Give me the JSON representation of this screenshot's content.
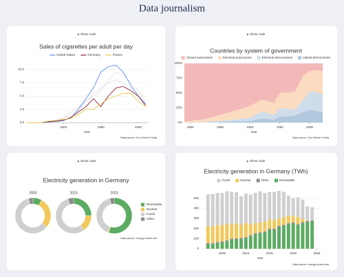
{
  "title": "Data journalism",
  "cards": [
    {
      "toggle": "Show code"
    },
    {
      "toggle": "Show code"
    },
    {
      "toggle": "Show code"
    },
    {
      "toggle": "Show code"
    }
  ],
  "chart_data": [
    {
      "type": "line",
      "title": "Sales of cigarettes per adult per day",
      "x_label": "Year",
      "source": "Data source: Our World in Data",
      "x": [
        1850,
        1860,
        1870,
        1880,
        1890,
        1900,
        1910,
        1920,
        1930,
        1940,
        1950,
        1960,
        1970,
        1980,
        1990,
        2000,
        2010
      ],
      "xlim": [
        1850,
        2013
      ],
      "xticks": [
        1900,
        1950,
        2000
      ],
      "ylim": [
        0,
        11
      ],
      "yticks": [
        {
          "value": 0,
          "label": "0.0"
        },
        {
          "value": 2.5,
          "label": "2.5"
        },
        {
          "value": 5,
          "label": "5.0"
        },
        {
          "value": 7.5,
          "label": "7.5"
        },
        {
          "value": 10,
          "label": "10.0"
        }
      ],
      "grid": true,
      "series": [
        {
          "name": "United States",
          "color": "#5b8def",
          "values": [
            0,
            0,
            0,
            0.1,
            0.2,
            0.4,
            0.9,
            2.5,
            4.5,
            6.5,
            9.5,
            10.5,
            10.8,
            9.5,
            7,
            5,
            3.5
          ]
        },
        {
          "name": "Germany",
          "color": "#8e1b2e",
          "values": [
            0,
            0,
            0,
            0.2,
            0.3,
            0.5,
            1,
            2,
            3,
            4.5,
            3,
            5,
            6.5,
            6.8,
            6,
            5,
            3.2
          ]
        },
        {
          "name": "France",
          "color": "#e9c64a",
          "values": [
            0,
            0,
            0,
            0.3,
            0.4,
            0.6,
            0.8,
            1.5,
            2.5,
            2.5,
            3.5,
            4.5,
            5,
            5.5,
            5.5,
            4,
            3
          ]
        },
        {
          "color": "#d4d4d4",
          "values": [
            0,
            0,
            0,
            0.2,
            0.5,
            1,
            2,
            3,
            4,
            5,
            6,
            8,
            9.5,
            9,
            7.5,
            6,
            4.5
          ]
        },
        {
          "color": "#d4d4d4",
          "values": [
            0,
            0,
            0,
            0.1,
            0.3,
            0.8,
            1.5,
            2.5,
            4,
            5.5,
            6.5,
            7.5,
            8,
            7.5,
            6.5,
            5.5,
            4
          ]
        }
      ]
    },
    {
      "type": "area",
      "title": "Countries by system of government",
      "x_label": "Year",
      "source": "Data source: Our World in Data",
      "x": [
        1790,
        1800,
        1825,
        1850,
        1875,
        1900,
        1920,
        1940,
        1950,
        1975,
        1990,
        2000,
        2010,
        2022
      ],
      "xlim": [
        1790,
        2023
      ],
      "xticks": [
        1800,
        1850,
        1900,
        1950,
        2000
      ],
      "ylim": [
        0,
        100
      ],
      "yticks": [
        {
          "value": 0,
          "label": "0%"
        },
        {
          "value": 25,
          "label": "25%"
        },
        {
          "value": 50,
          "label": "50%"
        },
        {
          "value": 75,
          "label": "75%"
        },
        {
          "value": 100,
          "label": "100%"
        }
      ],
      "series": [
        {
          "name": "Closed autocracies",
          "color": "#f3b9b9",
          "values": [
            98,
            97,
            94,
            87,
            80,
            72,
            61,
            67,
            50,
            48,
            20,
            13,
            11,
            14
          ]
        },
        {
          "name": "Electoral autocracies",
          "color": "#fbdcc0",
          "values": [
            2,
            3,
            5,
            10,
            15,
            20,
            20,
            20,
            25,
            30,
            40,
            35,
            37,
            38
          ]
        },
        {
          "name": "Electoral democracies",
          "color": "#cfdcea",
          "values": [
            0,
            0,
            1,
            2,
            3,
            5,
            12,
            8,
            15,
            10,
            22,
            30,
            32,
            30
          ]
        },
        {
          "name": "Liberal democracies",
          "color": "#b2c8de",
          "values": [
            0,
            0,
            0,
            1,
            2,
            3,
            7,
            5,
            10,
            12,
            18,
            22,
            20,
            18
          ]
        }
      ]
    },
    {
      "type": "donut",
      "title": "Electricity generation in Germany",
      "source": "Data source: energy-charts.info",
      "categories": [
        "2003",
        "2013",
        "2023"
      ],
      "series": [
        {
          "name": "Renewable",
          "color": "#5cab62",
          "values": [
            8,
            25,
            55
          ]
        },
        {
          "name": "Nuclear",
          "color": "#f1c85c",
          "values": [
            28,
            15,
            1
          ]
        },
        {
          "name": "Fossil",
          "color": "#cfcfcf",
          "values": [
            60,
            55,
            40
          ]
        },
        {
          "name": "Other",
          "color": "#8c8c8c",
          "values": [
            4,
            5,
            4
          ]
        }
      ]
    },
    {
      "type": "stacked-bar",
      "title": "Electricity generation in Germany (TWh)",
      "x_label": "Year",
      "source": "Data source: energy-charts.info",
      "x": [
        2002,
        2003,
        2004,
        2005,
        2006,
        2007,
        2008,
        2009,
        2010,
        2011,
        2012,
        2013,
        2014,
        2015,
        2016,
        2017,
        2018,
        2019,
        2020,
        2021,
        2022,
        2023,
        2024
      ],
      "xlim": [
        2000.5,
        2025.5
      ],
      "xticks": [
        2005,
        2010,
        2015,
        2020,
        2025
      ],
      "ylim": [
        0,
        600
      ],
      "yticks": [
        0,
        100,
        200,
        300,
        400,
        500
      ],
      "grid": true,
      "series": [
        {
          "name": "Fossil",
          "color": "#cfcfcf",
          "values": [
            320,
            322,
            318,
            316,
            320,
            325,
            308,
            280,
            290,
            295,
            300,
            310,
            282,
            272,
            280,
            270,
            252,
            200,
            175,
            195,
            190,
            140,
            130
          ]
        },
        {
          "name": "Nuclear",
          "color": "#f1c85c",
          "values": [
            165,
            165,
            167,
            163,
            167,
            141,
            149,
            135,
            141,
            108,
            100,
            97,
            97,
            92,
            85,
            76,
            76,
            75,
            64,
            69,
            33,
            7,
            0
          ]
        },
        {
          "name": "Other",
          "color": "#8c8c8c",
          "values": [
            10,
            10,
            10,
            10,
            10,
            10,
            10,
            10,
            10,
            10,
            10,
            10,
            10,
            10,
            10,
            10,
            10,
            10,
            10,
            10,
            10,
            10,
            10
          ]
        },
        {
          "name": "Renewable",
          "color": "#5cab62",
          "values": [
            45,
            46,
            57,
            62,
            72,
            88,
            92,
            95,
            105,
            123,
            143,
            152,
            162,
            188,
            188,
            216,
            225,
            242,
            251,
            234,
            254,
            263,
            270
          ]
        }
      ]
    }
  ]
}
